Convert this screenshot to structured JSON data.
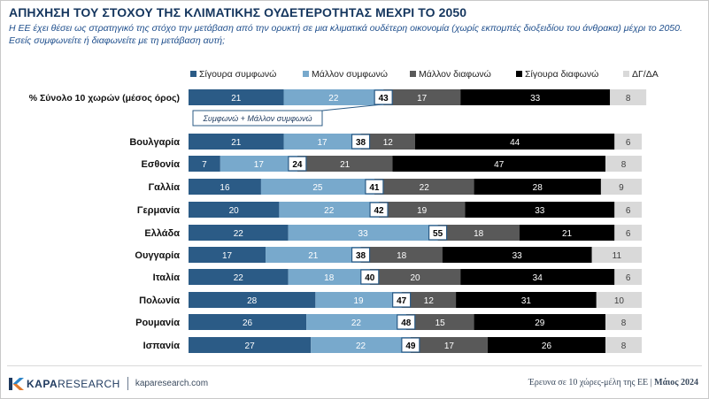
{
  "title": "ΑΠΗΧΗΣΗ ΤΟΥ ΣΤΟΧΟΥ ΤΗΣ ΚΛΙΜΑΤΙΚΗΣ ΟΥΔΕΤΕΡΟΤΗΤΑΣ ΜΕΧΡΙ ΤΟ 2050",
  "subtitle": "Η ΕΕ έχει θέσει ως στρατηγικό της στόχο την μετάβαση από την ορυκτή σε μια κλιματικά ουδέτερη οικονομία (χωρίς εκπομπές διοξειδίου του άνθρακα) μέχρι το 2050. Εσείς συμφωνείτε ή διαφωνείτε με τη μετάβαση αυτή;",
  "footer": {
    "logo_bold": "KAPA",
    "logo_rest": "RESEARCH",
    "url": "kaparesearch.com",
    "survey": "Έρευνα σε 10 χώρες-μέλη της ΕΕ |",
    "date": "Μάιος 2024"
  },
  "colors": {
    "definitely_agree": "#2b5b86",
    "probably_agree": "#78a9cc",
    "probably_disagree": "#595959",
    "definitely_disagree": "#000000",
    "dk_na": "#d9d9d9",
    "title": "#15365e",
    "subtitle": "#1e4e8c"
  },
  "chart_data": {
    "type": "bar",
    "orientation": "horizontal",
    "stacked": true,
    "unit": "%",
    "legend_position": "top",
    "grid": false,
    "xlim": [
      0,
      100
    ],
    "categories": [
      "% Σύνολο 10 χωρών (μέσος όρος)",
      "Βουλγαρία",
      "Εσθονία",
      "Γαλλία",
      "Γερμανία",
      "Ελλάδα",
      "Ουγγαρία",
      "Ιταλία",
      "Πολωνία",
      "Ρουμανία",
      "Ισπανία"
    ],
    "series": [
      {
        "name": "Σίγουρα συμφωνώ",
        "values": [
          21,
          21,
          7,
          16,
          20,
          22,
          17,
          22,
          28,
          26,
          27
        ]
      },
      {
        "name": "Μάλλον συμφωνώ",
        "values": [
          22,
          17,
          17,
          25,
          22,
          33,
          21,
          18,
          19,
          22,
          22
        ]
      },
      {
        "name": "Μάλλον διαφωνώ",
        "values": [
          17,
          12,
          21,
          22,
          19,
          18,
          18,
          20,
          12,
          15,
          17
        ]
      },
      {
        "name": "Σίγουρα διαφωνώ",
        "values": [
          33,
          44,
          47,
          28,
          33,
          21,
          33,
          34,
          31,
          29,
          26
        ]
      },
      {
        "name": "ΔΓ/ΔΑ",
        "values": [
          8,
          6,
          8,
          9,
          6,
          6,
          11,
          6,
          10,
          8,
          8
        ]
      }
    ],
    "agree_total": [
      43,
      38,
      24,
      41,
      42,
      55,
      38,
      40,
      47,
      48,
      49
    ],
    "annotation": "Συμφωνώ + Μάλλον συμφωνώ"
  }
}
